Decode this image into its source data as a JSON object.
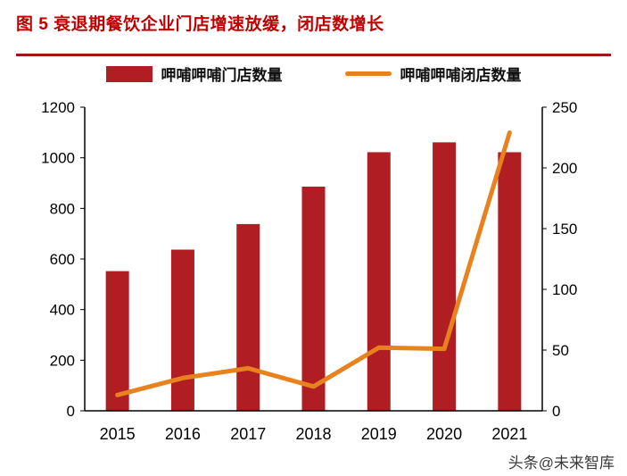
{
  "title": "图 5 衰退期餐饮企业门店增速放缓，闭店数增长",
  "watermark": "头条@未来智库",
  "colors": {
    "title": "#C00000",
    "divider": "#A01616",
    "bar": "#B01E23",
    "line": "#E8821E",
    "axis": "#000000"
  },
  "chart_data": {
    "type": "bar",
    "subtype": "bar+line dual axis",
    "categories": [
      "2015",
      "2016",
      "2017",
      "2018",
      "2019",
      "2020",
      "2021"
    ],
    "series": [
      {
        "name": "呷哺呷哺门店数量",
        "type": "bar",
        "axis": "left",
        "values": [
          552,
          637,
          738,
          886,
          1022,
          1061,
          1022
        ]
      },
      {
        "name": "呷哺呷哺闭店数量",
        "type": "line",
        "axis": "right",
        "values": [
          13,
          27,
          35,
          20,
          52,
          51,
          229
        ]
      }
    ],
    "left_axis": {
      "min": 0,
      "max": 1200,
      "step": 200
    },
    "right_axis": {
      "min": 0,
      "max": 250,
      "step": 50
    },
    "grid": false,
    "legend_position": "top"
  }
}
